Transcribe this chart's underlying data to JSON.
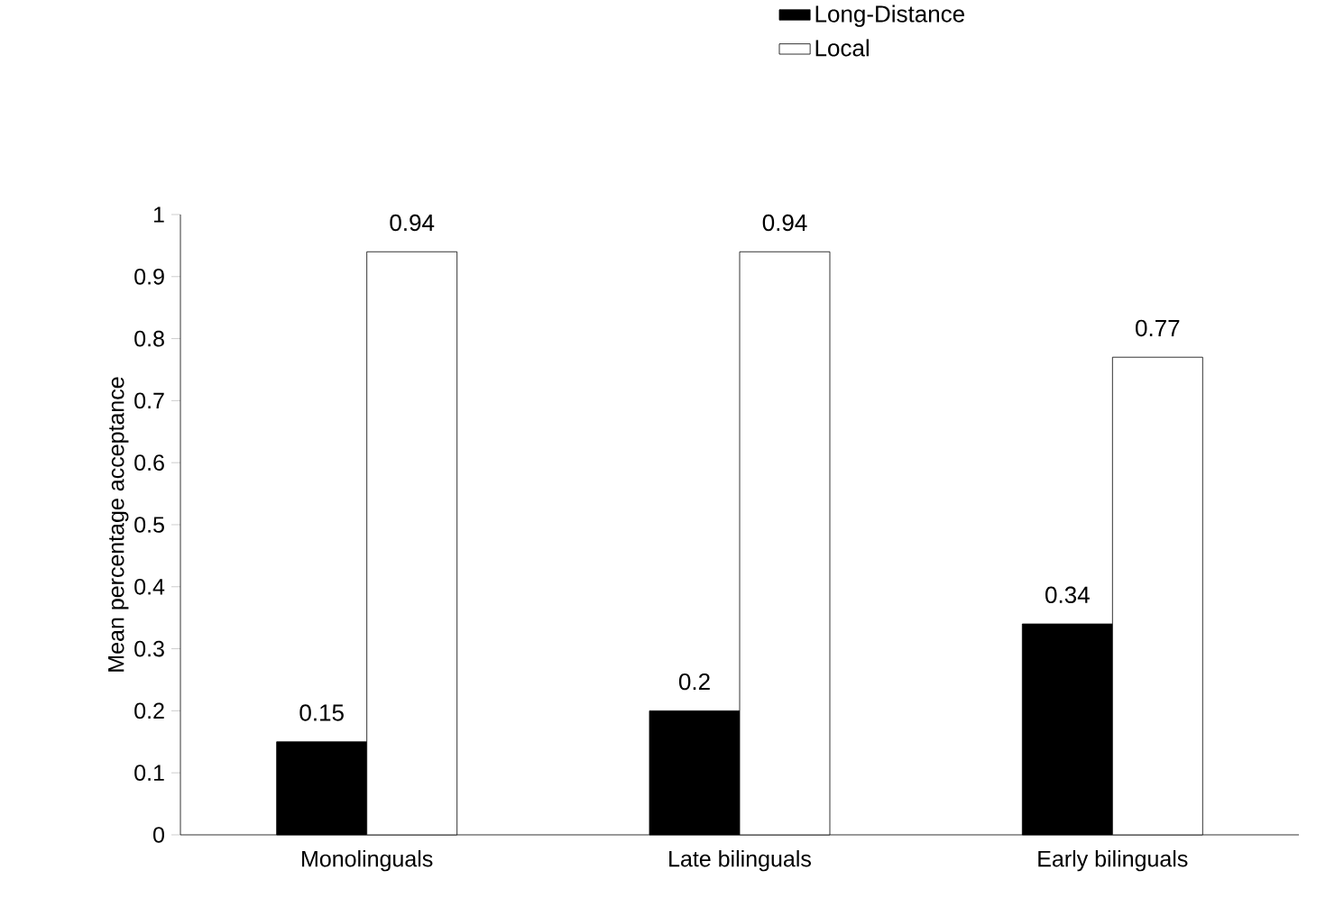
{
  "chart_data": {
    "type": "bar",
    "ylabel": "Mean percentage acceptance",
    "categories": [
      "Monolinguals",
      "Late bilinguals",
      "Early bilinguals"
    ],
    "series": [
      {
        "name": "Long-Distance",
        "color": "#000000",
        "values": [
          0.15,
          0.2,
          0.34
        ]
      },
      {
        "name": "Local",
        "color": "#ffffff",
        "values": [
          0.94,
          0.94,
          0.77
        ]
      }
    ],
    "ylim": [
      0,
      1
    ],
    "yticks": [
      0,
      0.1,
      0.2,
      0.3,
      0.4,
      0.5,
      0.6,
      0.7,
      0.8,
      0.9,
      1
    ],
    "data_labels": true,
    "legend": "top right",
    "grid": false
  }
}
